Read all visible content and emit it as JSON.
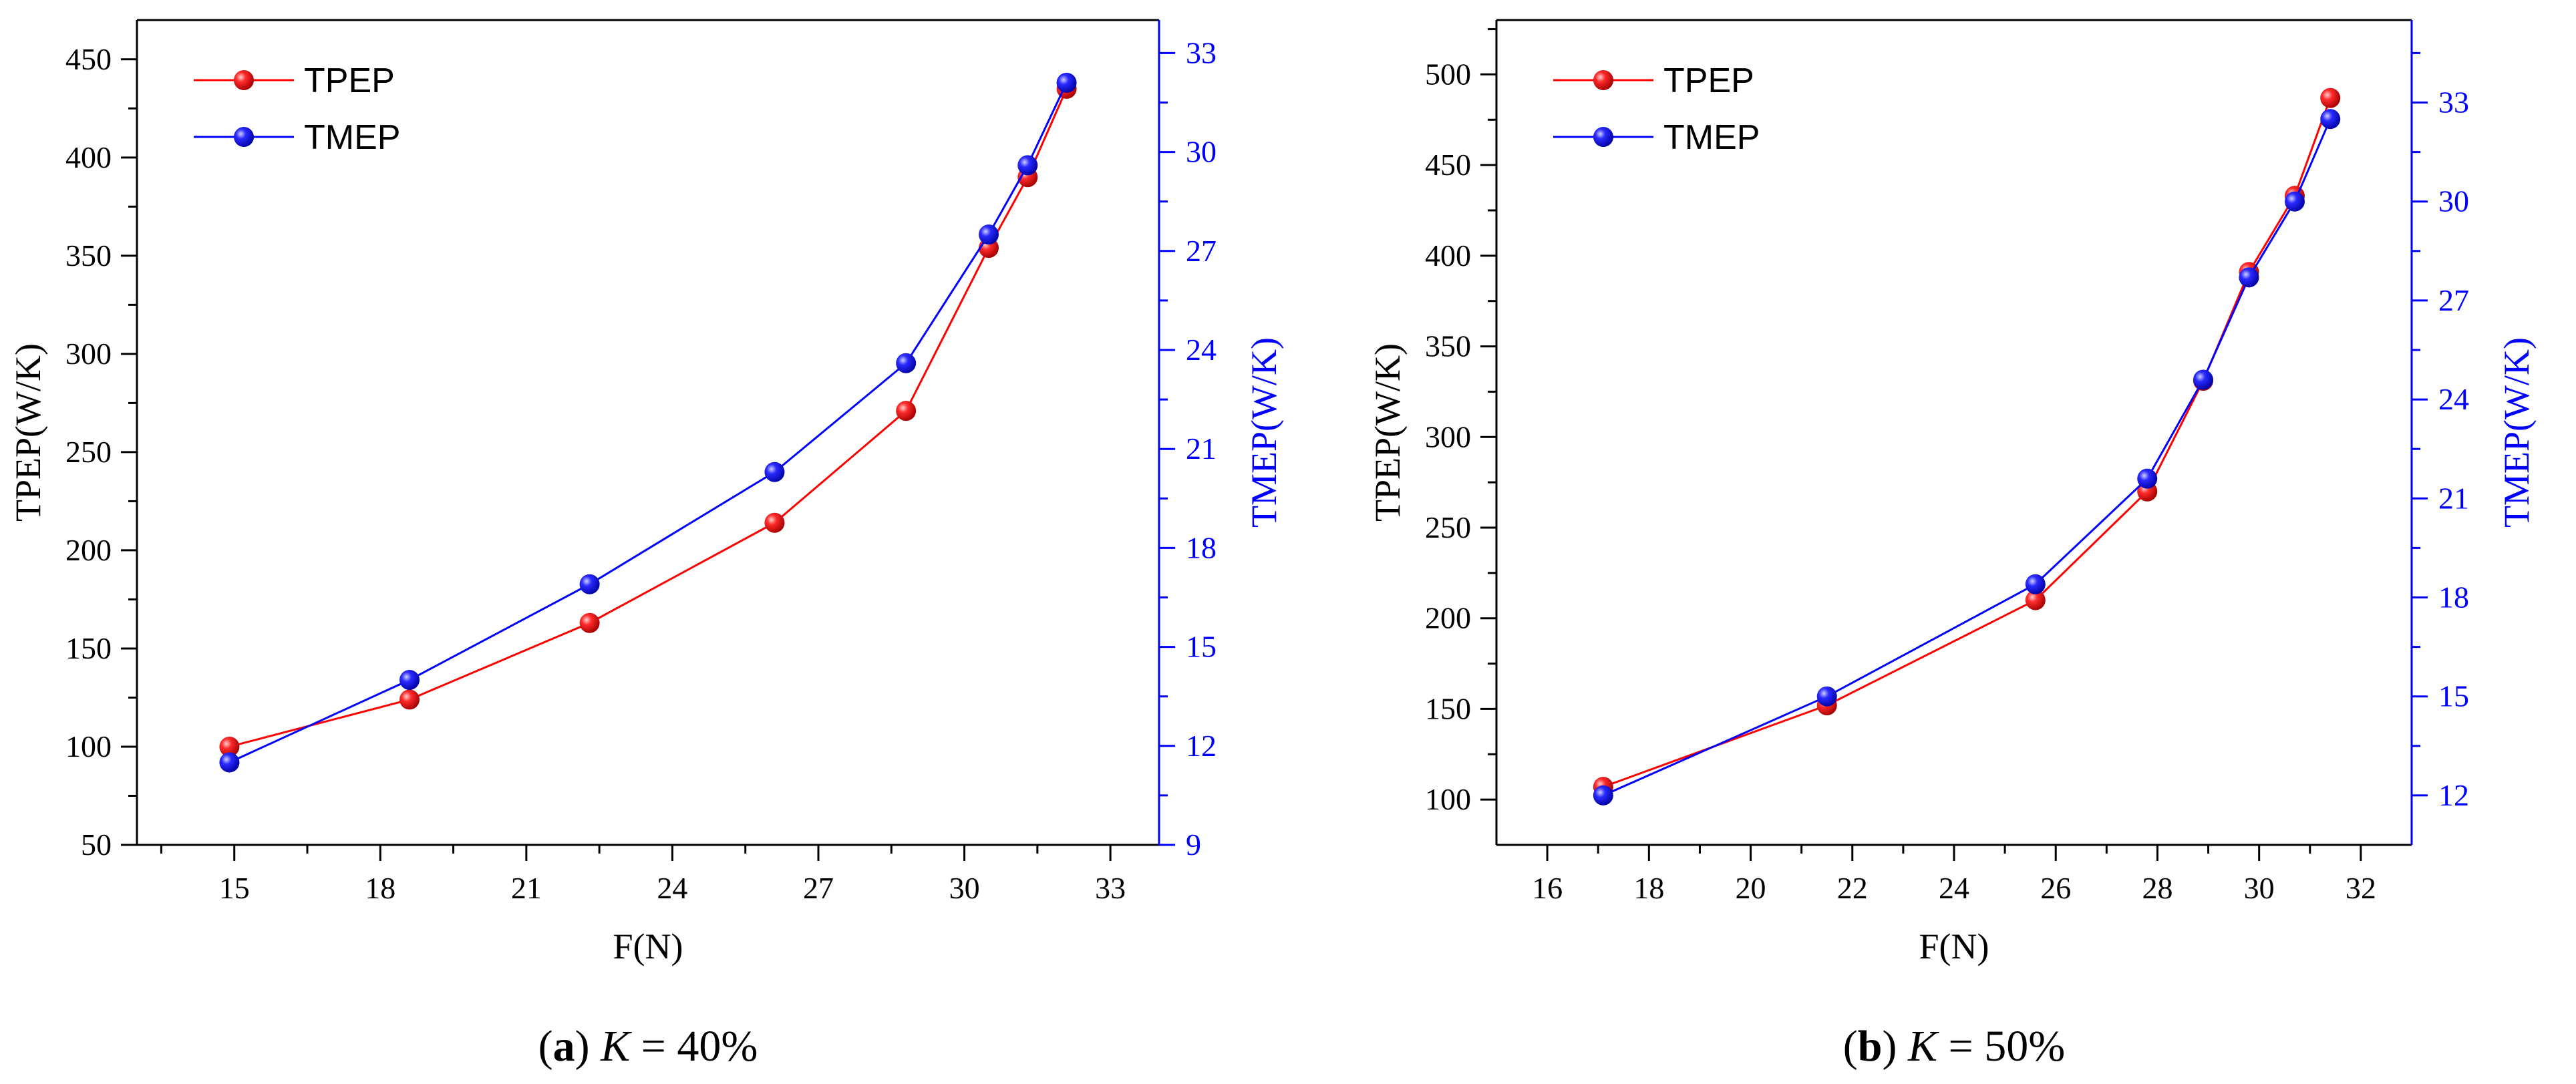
{
  "colors": {
    "tpep": "#ff0000",
    "tmep": "#0000ff",
    "axis": "#000000",
    "right_axis": "#0000ff",
    "background": "#ffffff"
  },
  "chart_data": [
    {
      "type": "line",
      "panel_label": "a",
      "caption_var": "K",
      "caption_value": " = 40%",
      "title": "",
      "xlabel": "F(N)",
      "ylabel": "TPEP(W/K)",
      "y2label": "TMEP(W/K)",
      "xlim": [
        13,
        34
      ],
      "ylim": [
        50,
        470
      ],
      "y2lim": [
        9,
        34
      ],
      "xticks": [
        15,
        18,
        21,
        24,
        27,
        30,
        33
      ],
      "yticks": [
        50,
        100,
        150,
        200,
        250,
        300,
        350,
        400,
        450
      ],
      "y2ticks": [
        9,
        12,
        15,
        18,
        21,
        24,
        27,
        30,
        33
      ],
      "legend": "top-left",
      "series": [
        {
          "name": "TPEP",
          "axis": "left",
          "x": [
            14.9,
            18.6,
            22.3,
            26.1,
            28.8,
            30.5,
            31.3,
            32.1
          ],
          "y": [
            100,
            124,
            163,
            214,
            271,
            354,
            390,
            435
          ]
        },
        {
          "name": "TMEP",
          "axis": "right",
          "x": [
            14.9,
            18.6,
            22.3,
            26.1,
            28.8,
            30.5,
            31.3,
            32.1
          ],
          "y": [
            11.5,
            14.0,
            16.9,
            20.3,
            23.6,
            27.5,
            29.6,
            32.1
          ]
        }
      ]
    },
    {
      "type": "line",
      "panel_label": "b",
      "caption_var": "K",
      "caption_value": " = 50%",
      "title": "",
      "xlabel": "F(N)",
      "ylabel": "TPEP(W/K)",
      "y2label": "TMEP(W/K)",
      "xlim": [
        15,
        33
      ],
      "ylim": [
        75,
        530
      ],
      "y2lim": [
        10.5,
        35.5
      ],
      "xticks": [
        16,
        18,
        20,
        22,
        24,
        26,
        28,
        30,
        32
      ],
      "yticks": [
        100,
        150,
        200,
        250,
        300,
        350,
        400,
        450,
        500
      ],
      "y2ticks": [
        12,
        15,
        18,
        21,
        24,
        27,
        30,
        33
      ],
      "legend": "top-left",
      "series": [
        {
          "name": "TPEP",
          "axis": "left",
          "x": [
            17.1,
            21.5,
            25.6,
            27.8,
            28.9,
            29.8,
            30.7,
            31.4
          ],
          "y": [
            107,
            152,
            210,
            270,
            331,
            391,
            433,
            487
          ]
        },
        {
          "name": "TMEP",
          "axis": "right",
          "x": [
            17.1,
            21.5,
            25.6,
            27.8,
            28.9,
            29.8,
            30.7,
            31.4
          ],
          "y": [
            12.0,
            15.0,
            18.4,
            21.6,
            24.6,
            27.7,
            30.0,
            32.5
          ]
        }
      ]
    }
  ]
}
